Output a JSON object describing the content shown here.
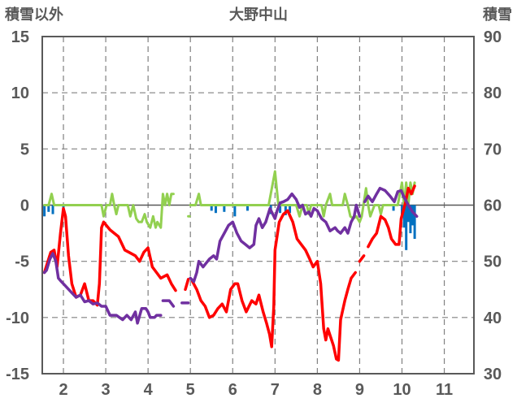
{
  "chart_data": {
    "type": "line",
    "title": "大野中山",
    "ylabel_left": "積雪以外",
    "ylabel_right": "積雪",
    "xlim": [
      1.5,
      11.7
    ],
    "ylim_left": [
      -15,
      15
    ],
    "ylim_right": [
      30,
      90
    ],
    "x_ticks": [
      2,
      3,
      4,
      5,
      6,
      7,
      8,
      9,
      10,
      11
    ],
    "y_ticks_left": [
      15,
      10,
      5,
      0,
      -5,
      -10,
      -15
    ],
    "y_ticks_right": [
      90,
      80,
      70,
      60,
      50,
      40,
      30
    ],
    "grid": true,
    "colors": {
      "red": "#ff0000",
      "purple": "#7030a0",
      "green": "#92d050",
      "blue": "#0070c0",
      "axis": "#595959",
      "grid": "#808080"
    },
    "series": [
      {
        "color": "#ff0000",
        "axis": "left",
        "segments": [
          [
            [
              1.55,
              -6
            ],
            [
              1.7,
              -4.2
            ],
            [
              1.78,
              -4
            ],
            [
              1.85,
              -5.5
            ],
            [
              1.93,
              -2.5
            ],
            [
              2.0,
              -0.3
            ],
            [
              2.05,
              -1
            ],
            [
              2.12,
              -4.5
            ],
            [
              2.2,
              -7
            ],
            [
              2.3,
              -8.2
            ],
            [
              2.4,
              -8
            ],
            [
              2.5,
              -7
            ],
            [
              2.6,
              -8.5
            ],
            [
              2.7,
              -8.5
            ],
            [
              2.8,
              -8.9
            ],
            [
              2.85,
              -7
            ],
            [
              2.9,
              -2
            ],
            [
              2.95,
              -1.5
            ],
            [
              3.1,
              -2.2
            ],
            [
              3.3,
              -2.8
            ],
            [
              3.45,
              -4
            ],
            [
              3.55,
              -4.2
            ],
            [
              3.7,
              -4.5
            ],
            [
              3.8,
              -5
            ],
            [
              3.9,
              -4.2
            ],
            [
              4.0,
              -3.8
            ],
            [
              4.1,
              -5.5
            ],
            [
              4.2,
              -6
            ],
            [
              4.3,
              -6.5
            ],
            [
              4.45,
              -6.2
            ],
            [
              4.55,
              -7
            ],
            [
              4.65,
              -7.6
            ]
          ],
          [
            [
              4.88,
              -7.5
            ],
            [
              4.95,
              -6.6
            ]
          ],
          [
            [
              5.05,
              -6.8
            ],
            [
              5.15,
              -7.5
            ],
            [
              5.25,
              -8.5
            ],
            [
              5.35,
              -9
            ],
            [
              5.45,
              -10
            ],
            [
              5.55,
              -9.8
            ],
            [
              5.65,
              -9.2
            ],
            [
              5.75,
              -8.8
            ],
            [
              5.85,
              -9.5
            ],
            [
              5.95,
              -7.5
            ],
            [
              6.05,
              -7
            ],
            [
              6.12,
              -7
            ],
            [
              6.22,
              -8.5
            ],
            [
              6.32,
              -9.5
            ],
            [
              6.45,
              -8.5
            ],
            [
              6.55,
              -8.8
            ],
            [
              6.62,
              -8
            ],
            [
              6.72,
              -9.5
            ],
            [
              6.8,
              -10.5
            ],
            [
              6.87,
              -11.5
            ],
            [
              6.92,
              -12.6
            ],
            [
              6.97,
              -9
            ],
            [
              7.0,
              -4
            ],
            [
              7.1,
              -1.5
            ],
            [
              7.2,
              -0.8
            ],
            [
              7.3,
              -0.5
            ],
            [
              7.42,
              -1.5
            ],
            [
              7.52,
              -3
            ],
            [
              7.62,
              -3.5
            ],
            [
              7.72,
              -4
            ],
            [
              7.82,
              -4.8
            ],
            [
              7.9,
              -5.5
            ],
            [
              8.0,
              -5
            ],
            [
              8.08,
              -7
            ],
            [
              8.15,
              -11
            ],
            [
              8.2,
              -12
            ],
            [
              8.25,
              -11
            ],
            [
              8.32,
              -11.8
            ],
            [
              8.38,
              -12.5
            ],
            [
              8.45,
              -13.7
            ],
            [
              8.5,
              -13.8
            ],
            [
              8.55,
              -10.2
            ],
            [
              8.65,
              -8.5
            ],
            [
              8.72,
              -7.5
            ],
            [
              8.8,
              -6.5
            ],
            [
              8.9,
              -6
            ]
          ],
          [
            [
              9.0,
              -5
            ],
            [
              9.1,
              -4.5
            ]
          ],
          [
            [
              9.2,
              -3.7
            ],
            [
              9.3,
              -3
            ],
            [
              9.4,
              -2.5
            ],
            [
              9.5,
              -1
            ],
            [
              9.6,
              -1.3
            ],
            [
              9.68,
              -2
            ],
            [
              9.75,
              -3
            ],
            [
              9.85,
              -3.5
            ],
            [
              9.93,
              -3.5
            ],
            [
              9.98,
              -1.2
            ],
            [
              10.08,
              0.2
            ],
            [
              10.15,
              1.5
            ],
            [
              10.22,
              1
            ],
            [
              10.3,
              1.7
            ]
          ]
        ]
      },
      {
        "color": "#7030a0",
        "axis": "left",
        "segments": [
          [
            [
              1.55,
              -6
            ],
            [
              1.6,
              -5.8
            ],
            [
              1.68,
              -4.8
            ],
            [
              1.75,
              -4.3
            ],
            [
              1.82,
              -5
            ],
            [
              1.88,
              -6.5
            ],
            [
              1.95,
              -6.8
            ],
            [
              2.05,
              -7.2
            ],
            [
              2.2,
              -7.8
            ],
            [
              2.3,
              -8.2
            ],
            [
              2.4,
              -8
            ],
            [
              2.5,
              -8.6
            ],
            [
              2.6,
              -8.5
            ],
            [
              2.7,
              -8.8
            ],
            [
              2.8,
              -8.7
            ],
            [
              2.9,
              -9
            ],
            [
              3.0,
              -9
            ],
            [
              3.1,
              -9.8
            ],
            [
              3.25,
              -9.8
            ],
            [
              3.4,
              -10.2
            ],
            [
              3.5,
              -9.8
            ],
            [
              3.6,
              -10.2
            ],
            [
              3.7,
              -9.5
            ],
            [
              3.75,
              -10.5
            ],
            [
              3.85,
              -9.2
            ],
            [
              3.95,
              -9.2
            ],
            [
              4.0,
              -9.5
            ],
            [
              4.05,
              -10
            ],
            [
              4.15,
              -10
            ],
            [
              4.2,
              -9.8
            ],
            [
              4.3,
              -9.8
            ]
          ],
          [
            [
              4.35,
              -8.5
            ],
            [
              4.5,
              -8.5
            ],
            [
              4.6,
              -9
            ]
          ],
          [
            [
              4.8,
              -8.7
            ],
            [
              4.95,
              -8.7
            ]
          ],
          [
            [
              5.0,
              -6.5
            ],
            [
              5.08,
              -6.8
            ],
            [
              5.15,
              -6
            ],
            [
              5.2,
              -5
            ],
            [
              5.3,
              -5.5
            ],
            [
              5.45,
              -4.8
            ],
            [
              5.55,
              -4.5
            ],
            [
              5.62,
              -4.8
            ],
            [
              5.7,
              -3.2
            ],
            [
              5.8,
              -2.5
            ],
            [
              5.9,
              -1.8
            ],
            [
              6.0,
              -1.5
            ],
            [
              6.1,
              -2.5
            ],
            [
              6.2,
              -3.2
            ],
            [
              6.3,
              -3.5
            ],
            [
              6.4,
              -3.8
            ],
            [
              6.5,
              -3.5
            ],
            [
              6.55,
              -1.8
            ],
            [
              6.62,
              -1.2
            ],
            [
              6.7,
              -2
            ],
            [
              6.78,
              -1.5
            ],
            [
              6.88,
              -0.3
            ],
            [
              7.0,
              -1.2
            ],
            [
              7.05,
              -0.5
            ],
            [
              7.12,
              0.2
            ],
            [
              7.2,
              0.3
            ],
            [
              7.3,
              0.5
            ],
            [
              7.4,
              1
            ],
            [
              7.5,
              0.5
            ],
            [
              7.58,
              -0.2
            ],
            [
              7.65,
              0
            ],
            [
              7.72,
              -0.8
            ],
            [
              7.8,
              -0.6
            ],
            [
              7.85,
              -1
            ],
            [
              7.92,
              -0.3
            ],
            [
              8.0,
              -0.5
            ],
            [
              8.1,
              -1.2
            ],
            [
              8.2,
              -1.5
            ],
            [
              8.3,
              -2.3
            ],
            [
              8.42,
              -2
            ],
            [
              8.48,
              -2.3
            ],
            [
              8.55,
              -2.5
            ],
            [
              8.65,
              -2
            ],
            [
              8.72,
              -2.5
            ],
            [
              8.8,
              -1.5
            ],
            [
              8.87,
              -1
            ],
            [
              8.92,
              0
            ],
            [
              9.0,
              -1
            ]
          ],
          [
            [
              9.12,
              0.3
            ],
            [
              9.2,
              0.8
            ],
            [
              9.3,
              0.3
            ],
            [
              9.4,
              1
            ],
            [
              9.48,
              1.5
            ],
            [
              9.6,
              1.3
            ],
            [
              9.72,
              0.8
            ],
            [
              9.82,
              0.3
            ],
            [
              9.9,
              1.2
            ],
            [
              9.98,
              1.3
            ],
            [
              10.05,
              0.7
            ],
            [
              10.15,
              0
            ],
            [
              10.25,
              -0.6
            ],
            [
              10.35,
              -1
            ]
          ]
        ]
      },
      {
        "color": "#92d050",
        "axis": "left",
        "segments": [
          [
            [
              1.55,
              0
            ],
            [
              1.65,
              0
            ],
            [
              1.72,
              1
            ],
            [
              1.78,
              0
            ],
            [
              2.9,
              0
            ],
            [
              2.95,
              -1
            ],
            [
              3.02,
              0
            ],
            [
              3.1,
              0
            ],
            [
              3.15,
              1
            ],
            [
              3.2,
              0
            ],
            [
              3.25,
              -0.8
            ],
            [
              3.3,
              0
            ],
            [
              3.52,
              0
            ],
            [
              3.58,
              -1
            ],
            [
              3.65,
              0
            ],
            [
              3.72,
              -1.2
            ],
            [
              3.78,
              -1.5
            ],
            [
              3.85,
              -1.5
            ],
            [
              3.92,
              -0.8
            ],
            [
              3.97,
              -1.5
            ],
            [
              4.05,
              -2
            ],
            [
              4.12,
              -1
            ],
            [
              4.18,
              -2
            ],
            [
              4.22,
              -1.5
            ],
            [
              4.3,
              -2
            ],
            [
              4.35,
              1
            ],
            [
              4.4,
              0
            ],
            [
              4.45,
              1
            ],
            [
              4.5,
              0
            ],
            [
              4.55,
              1
            ],
            [
              4.6,
              1
            ]
          ],
          [
            [
              4.95,
              -1
            ],
            [
              4.98,
              -1
            ]
          ],
          [
            [
              5.0,
              0
            ],
            [
              5.12,
              0
            ],
            [
              5.2,
              1
            ],
            [
              5.25,
              0
            ],
            [
              6.85,
              0
            ],
            [
              6.9,
              1
            ],
            [
              7.0,
              3
            ],
            [
              7.08,
              0
            ],
            [
              7.5,
              0
            ],
            [
              7.58,
              -1
            ],
            [
              7.65,
              0
            ],
            [
              7.75,
              0
            ],
            [
              7.8,
              -0.8
            ],
            [
              7.85,
              0
            ],
            [
              8.1,
              0
            ],
            [
              8.15,
              -1
            ],
            [
              8.2,
              0
            ],
            [
              8.3,
              1
            ],
            [
              8.35,
              0
            ],
            [
              8.6,
              0
            ],
            [
              8.65,
              1
            ],
            [
              8.72,
              0
            ],
            [
              8.78,
              -1
            ],
            [
              8.85,
              -1.2
            ],
            [
              8.92,
              -1
            ],
            [
              9.0,
              -1.5
            ],
            [
              9.05,
              -1
            ],
            [
              9.15,
              1.5
            ],
            [
              9.2,
              0
            ],
            [
              9.25,
              -1
            ],
            [
              9.35,
              0
            ],
            [
              9.45,
              0
            ],
            [
              9.5,
              -0.8
            ],
            [
              9.55,
              0
            ],
            [
              9.9,
              0
            ],
            [
              10.0,
              2
            ],
            [
              10.05,
              0
            ],
            [
              10.1,
              2
            ],
            [
              10.15,
              0
            ],
            [
              10.2,
              2
            ],
            [
              10.25,
              1
            ],
            [
              10.3,
              2
            ]
          ]
        ]
      }
    ],
    "bars": {
      "color": "#0070c0",
      "axis": "left",
      "x": [
        1.55,
        1.65,
        1.75,
        2.0,
        5.5,
        5.6,
        5.8,
        6.05,
        6.35,
        6.9,
        7.12,
        7.25,
        7.35,
        9.8,
        10.0,
        10.05,
        10.1,
        10.15,
        10.2,
        10.25,
        10.3
      ],
      "values": [
        -1,
        -0.6,
        -0.8,
        -0.5,
        -0.5,
        -0.7,
        -0.6,
        -1,
        -0.5,
        -0.8,
        -0.7,
        -0.9,
        -0.7,
        -0.5,
        -1,
        -2,
        -4,
        -1.5,
        -2.5,
        -1.8,
        -3
      ]
    }
  }
}
